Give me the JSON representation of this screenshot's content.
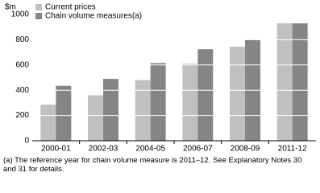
{
  "chart_data": {
    "type": "bar",
    "y_unit_label": "$m",
    "categories": [
      "2000-01",
      "2002-03",
      "2004-05",
      "2006-07",
      "2008-09",
      "2011-12"
    ],
    "series": [
      {
        "name": "Current prices",
        "color": "#c0c0c0",
        "values": [
          285,
          360,
          480,
          610,
          745,
          930
        ]
      },
      {
        "name": "Chain volume measures(a)",
        "color": "#858585",
        "values": [
          435,
          490,
          615,
          725,
          800,
          930
        ]
      }
    ],
    "ylim": [
      0,
      1000
    ],
    "yticks": [
      0,
      200,
      400,
      600,
      800,
      1000
    ],
    "grid": true,
    "footnote": "(a) The reference year for chain volume measure is 2011–12. See Explanatory Notes 30 and 31 for details."
  }
}
